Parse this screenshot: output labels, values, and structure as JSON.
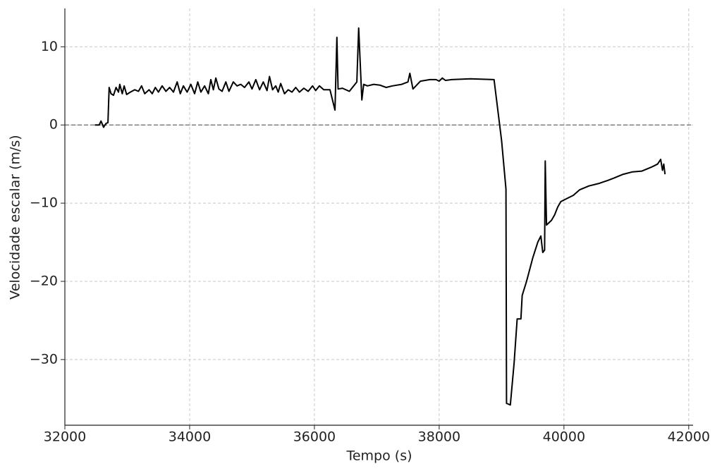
{
  "chart_data": {
    "type": "line",
    "x_label": "Tempo (s)",
    "y_label": "Velocidade escalar (m/s)",
    "xlim": [
      32000,
      42070
    ],
    "ylim": [
      -38.4,
      14.9
    ],
    "xticks": [
      32000,
      34000,
      36000,
      38000,
      40000,
      42000
    ],
    "yticks": [
      {
        "value": -30,
        "label": "−30"
      },
      {
        "value": -20,
        "label": "−20"
      },
      {
        "value": -10,
        "label": "−10"
      },
      0,
      10
    ],
    "grid": true,
    "reference_line": 0,
    "reference_color": "#808080",
    "series": [
      {
        "color": "#000000",
        "x": [
          32480,
          32550,
          32580,
          32620,
          32660,
          32690,
          32710,
          32740,
          32780,
          32820,
          32860,
          32880,
          32920,
          32950,
          32990,
          33050,
          33120,
          33180,
          33230,
          33280,
          33350,
          33400,
          33450,
          33500,
          33560,
          33620,
          33680,
          33740,
          33800,
          33850,
          33900,
          33960,
          34020,
          34080,
          34130,
          34180,
          34240,
          34300,
          34340,
          34380,
          34420,
          34470,
          34520,
          34580,
          34630,
          34700,
          34760,
          34820,
          34880,
          34950,
          35000,
          35060,
          35120,
          35180,
          35240,
          35280,
          35330,
          35380,
          35420,
          35460,
          35520,
          35580,
          35640,
          35700,
          35760,
          35830,
          35900,
          35970,
          36020,
          36080,
          36150,
          36250,
          36330,
          36360,
          36380,
          36450,
          36560,
          36680,
          36710,
          36760,
          36790,
          36850,
          36950,
          37050,
          37150,
          37250,
          37400,
          37500,
          37530,
          37580,
          37700,
          37850,
          37950,
          38000,
          38050,
          38100,
          38200,
          38500,
          38880,
          39000,
          39070,
          39080,
          39140,
          39200,
          39250,
          39310,
          39330,
          39400,
          39500,
          39580,
          39630,
          39660,
          39690,
          39700,
          39720,
          39800,
          39850,
          39900,
          39950,
          40050,
          40150,
          40250,
          40400,
          40550,
          40700,
          40800,
          40950,
          41100,
          41250,
          41400,
          41500,
          41550,
          41580,
          41600,
          41620
        ],
        "values": [
          0,
          0,
          0.5,
          -0.3,
          0.2,
          0.3,
          4.8,
          4.0,
          3.8,
          4.8,
          4.2,
          5.2,
          4.0,
          5.0,
          3.9,
          4.2,
          4.5,
          4.3,
          5.0,
          4.0,
          4.5,
          4.0,
          4.8,
          4.2,
          5.0,
          4.3,
          4.8,
          4.2,
          5.5,
          4.0,
          5.0,
          4.2,
          5.2,
          4.0,
          5.5,
          4.2,
          5.0,
          4.0,
          5.8,
          4.5,
          6.0,
          4.6,
          4.3,
          5.5,
          4.3,
          5.5,
          5.0,
          5.2,
          4.8,
          5.5,
          4.6,
          5.8,
          4.5,
          5.5,
          4.4,
          6.2,
          4.5,
          5.0,
          4.2,
          5.3,
          4.0,
          4.5,
          4.2,
          4.8,
          4.2,
          4.7,
          4.3,
          5.0,
          4.4,
          5.0,
          4.5,
          4.5,
          1.9,
          11.2,
          4.6,
          4.7,
          4.3,
          5.5,
          12.4,
          3.2,
          5.2,
          5.0,
          5.2,
          5.1,
          4.8,
          5.0,
          5.2,
          5.5,
          6.6,
          4.6,
          5.6,
          5.8,
          5.8,
          5.6,
          6.0,
          5.7,
          5.8,
          5.9,
          5.8,
          -2,
          -8.2,
          -35.6,
          -35.8,
          -30.5,
          -24.8,
          -24.8,
          -21.8,
          -20.0,
          -17.0,
          -15.0,
          -14.2,
          -16.3,
          -16.0,
          -4.6,
          -12.8,
          -12.2,
          -11.5,
          -10.5,
          -9.8,
          -9.4,
          -9.0,
          -8.3,
          -7.8,
          -7.5,
          -7.1,
          -6.8,
          -6.3,
          -6.0,
          -5.9,
          -5.4,
          -5.0,
          -4.4,
          -5.8,
          -5.0,
          -6.3
        ]
      }
    ]
  }
}
